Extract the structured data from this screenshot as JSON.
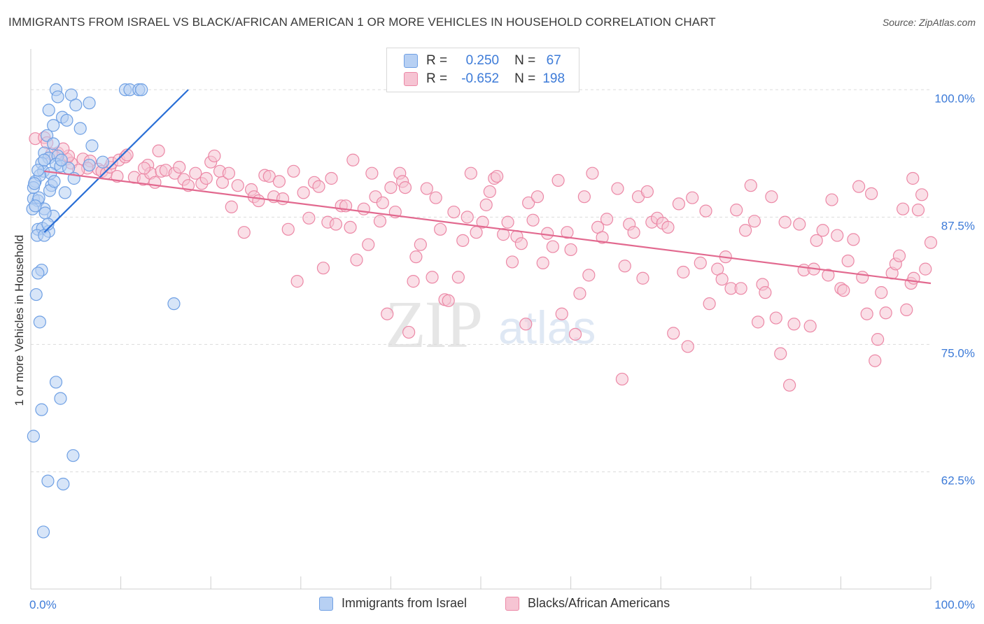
{
  "chart_data": {
    "type": "scatter",
    "title": "IMMIGRANTS FROM ISRAEL VS BLACK/AFRICAN AMERICAN 1 OR MORE VEHICLES IN HOUSEHOLD CORRELATION CHART",
    "source": "Source: ZipAtlas.com",
    "xlabel": "",
    "ylabel": "1 or more Vehicles in Household",
    "xlim": [
      0,
      100
    ],
    "ylim": [
      51,
      104
    ],
    "x_tick_labels": [
      "0.0%",
      "100.0%"
    ],
    "y_ticks": [
      62.5,
      75.0,
      87.5,
      100.0
    ],
    "y_tick_labels": [
      "62.5%",
      "75.0%",
      "87.5%",
      "100.0%"
    ],
    "grid": true,
    "legend_position": "top-center",
    "series": [
      {
        "name": "Immigrants from Israel",
        "color": "#6fa0e4",
        "fill": "#b7d0f3",
        "R": "0.250",
        "N": "67",
        "trend": {
          "x0": 1.5,
          "y0": 86.0,
          "x1": 17.5,
          "y1": 100.0
        },
        "points": [
          [
            2.8,
            100
          ],
          [
            3.0,
            99.3
          ],
          [
            4.5,
            99.5
          ],
          [
            5.0,
            98.5
          ],
          [
            6.5,
            98.7
          ],
          [
            2.0,
            98.0
          ],
          [
            3.5,
            97.3
          ],
          [
            2.5,
            96.5
          ],
          [
            4.0,
            97.0
          ],
          [
            5.5,
            96.2
          ],
          [
            1.8,
            95.5
          ],
          [
            2.5,
            94.7
          ],
          [
            6.8,
            94.5
          ],
          [
            1.5,
            93.8
          ],
          [
            2.0,
            93.3
          ],
          [
            3.0,
            93.5
          ],
          [
            1.2,
            92.8
          ],
          [
            2.8,
            92.7
          ],
          [
            3.3,
            92.5
          ],
          [
            4.2,
            92.3
          ],
          [
            1.4,
            92.0
          ],
          [
            2.2,
            91.8
          ],
          [
            4.8,
            91.3
          ],
          [
            0.5,
            91.0
          ],
          [
            2.3,
            90.6
          ],
          [
            3.8,
            89.9
          ],
          [
            0.3,
            89.3
          ],
          [
            0.8,
            89.1
          ],
          [
            0.2,
            88.3
          ],
          [
            1.5,
            88.3
          ],
          [
            2.5,
            87.6
          ],
          [
            0.8,
            86.3
          ],
          [
            1.3,
            86.4
          ],
          [
            2.0,
            86.1
          ],
          [
            0.7,
            85.7
          ],
          [
            1.5,
            85.7
          ],
          [
            1.2,
            82.3
          ],
          [
            0.8,
            82.0
          ],
          [
            0.6,
            79.9
          ],
          [
            1.0,
            77.2
          ],
          [
            2.8,
            71.3
          ],
          [
            3.3,
            69.7
          ],
          [
            1.2,
            68.6
          ],
          [
            0.3,
            66.0
          ],
          [
            4.7,
            64.1
          ],
          [
            1.9,
            61.6
          ],
          [
            3.6,
            61.3
          ],
          [
            1.4,
            56.6
          ],
          [
            10.5,
            100
          ],
          [
            11.0,
            100
          ],
          [
            12.0,
            100
          ],
          [
            12.3,
            100
          ],
          [
            8.0,
            92.9
          ],
          [
            6.5,
            92.6
          ],
          [
            1.5,
            93.1
          ],
          [
            0.3,
            90.4
          ],
          [
            0.9,
            89.4
          ],
          [
            1.6,
            87.9
          ],
          [
            0.5,
            88.6
          ],
          [
            15.9,
            79.0
          ],
          [
            2.1,
            90.1
          ],
          [
            1.9,
            86.8
          ],
          [
            3.4,
            93.1
          ],
          [
            2.6,
            91.0
          ],
          [
            1.0,
            91.6
          ],
          [
            0.4,
            90.8
          ],
          [
            0.8,
            92.1
          ]
        ]
      },
      {
        "name": "Blacks/African Americans",
        "color": "#ec88a6",
        "fill": "#f6c4d3",
        "R": "-0.652",
        "N": "198",
        "trend": {
          "x0": 1.5,
          "y0": 92.0,
          "x1": 100,
          "y1": 81.0
        },
        "points": [
          [
            0.5,
            95.2
          ],
          [
            1.5,
            95.3
          ],
          [
            3.0,
            93.8
          ],
          [
            4.0,
            93.2
          ],
          [
            4.5,
            92.8
          ],
          [
            5.8,
            93.2
          ],
          [
            6.6,
            93.0
          ],
          [
            6.3,
            92.3
          ],
          [
            7.5,
            92.2
          ],
          [
            7.9,
            92.0
          ],
          [
            8.4,
            91.8
          ],
          [
            8.8,
            92.4
          ],
          [
            9.0,
            92.8
          ],
          [
            9.8,
            93.1
          ],
          [
            10.5,
            93.4
          ],
          [
            10.7,
            93.6
          ],
          [
            11.5,
            91.4
          ],
          [
            12.5,
            91.2
          ],
          [
            13.0,
            92.6
          ],
          [
            13.3,
            91.8
          ],
          [
            13.8,
            90.9
          ],
          [
            14.5,
            92.0
          ],
          [
            15.0,
            92.1
          ],
          [
            16.0,
            91.8
          ],
          [
            16.5,
            92.4
          ],
          [
            17.0,
            91.2
          ],
          [
            17.5,
            90.6
          ],
          [
            18.3,
            91.8
          ],
          [
            19.0,
            90.8
          ],
          [
            19.5,
            91.3
          ],
          [
            20.0,
            92.9
          ],
          [
            20.4,
            93.5
          ],
          [
            21.0,
            92.0
          ],
          [
            21.3,
            90.9
          ],
          [
            22.0,
            91.8
          ],
          [
            22.3,
            88.5
          ],
          [
            23.0,
            90.6
          ],
          [
            23.7,
            86.0
          ],
          [
            24.5,
            90.2
          ],
          [
            24.8,
            89.5
          ],
          [
            25.3,
            89.1
          ],
          [
            26.0,
            91.6
          ],
          [
            26.5,
            91.5
          ],
          [
            27.0,
            89.5
          ],
          [
            27.6,
            91.0
          ],
          [
            28.0,
            89.3
          ],
          [
            28.6,
            86.3
          ],
          [
            29.2,
            92.0
          ],
          [
            29.6,
            81.2
          ],
          [
            30.3,
            89.9
          ],
          [
            30.9,
            87.4
          ],
          [
            31.5,
            90.9
          ],
          [
            32.0,
            90.5
          ],
          [
            32.5,
            82.5
          ],
          [
            33.0,
            87.0
          ],
          [
            33.4,
            91.3
          ],
          [
            33.9,
            86.8
          ],
          [
            34.5,
            88.6
          ],
          [
            35.0,
            88.6
          ],
          [
            35.5,
            86.5
          ],
          [
            35.8,
            93.1
          ],
          [
            36.2,
            83.3
          ],
          [
            37.0,
            88.3
          ],
          [
            37.5,
            84.8
          ],
          [
            37.9,
            91.8
          ],
          [
            38.3,
            89.5
          ],
          [
            38.8,
            87.1
          ],
          [
            39.1,
            88.9
          ],
          [
            39.6,
            78.0
          ],
          [
            40.0,
            90.4
          ],
          [
            40.5,
            88.0
          ],
          [
            41.0,
            91.8
          ],
          [
            41.3,
            91.0
          ],
          [
            41.6,
            90.4
          ],
          [
            42.0,
            76.2
          ],
          [
            42.5,
            81.2
          ],
          [
            42.8,
            83.6
          ],
          [
            43.3,
            84.8
          ],
          [
            44.0,
            90.3
          ],
          [
            44.6,
            81.6
          ],
          [
            45.0,
            89.4
          ],
          [
            45.5,
            86.3
          ],
          [
            46.0,
            79.4
          ],
          [
            46.4,
            79.3
          ],
          [
            47.0,
            88.0
          ],
          [
            47.5,
            81.6
          ],
          [
            48.0,
            85.2
          ],
          [
            48.5,
            87.5
          ],
          [
            48.9,
            91.8
          ],
          [
            49.5,
            86.0
          ],
          [
            50.2,
            87.0
          ],
          [
            50.6,
            88.7
          ],
          [
            51.0,
            90.0
          ],
          [
            51.5,
            91.3
          ],
          [
            51.8,
            91.5
          ],
          [
            52.5,
            85.8
          ],
          [
            53.0,
            87.0
          ],
          [
            53.5,
            83.1
          ],
          [
            54.0,
            85.6
          ],
          [
            54.5,
            84.9
          ],
          [
            55.0,
            77.0
          ],
          [
            55.3,
            88.9
          ],
          [
            55.8,
            87.2
          ],
          [
            56.3,
            89.5
          ],
          [
            56.9,
            83.0
          ],
          [
            57.4,
            85.9
          ],
          [
            58.0,
            84.6
          ],
          [
            58.6,
            91.1
          ],
          [
            59.0,
            78.0
          ],
          [
            59.6,
            86.0
          ],
          [
            60.0,
            84.3
          ],
          [
            60.5,
            76.0
          ],
          [
            61.0,
            80.0
          ],
          [
            61.5,
            89.5
          ],
          [
            62.0,
            81.8
          ],
          [
            62.4,
            91.8
          ],
          [
            63.0,
            86.5
          ],
          [
            63.5,
            85.5
          ],
          [
            64.0,
            87.3
          ],
          [
            65.2,
            90.3
          ],
          [
            65.7,
            71.6
          ],
          [
            66.0,
            82.7
          ],
          [
            66.5,
            86.8
          ],
          [
            67.0,
            86.0
          ],
          [
            67.5,
            89.5
          ],
          [
            68.0,
            81.5
          ],
          [
            68.5,
            90.0
          ],
          [
            69.0,
            87.0
          ],
          [
            69.6,
            87.4
          ],
          [
            70.2,
            86.9
          ],
          [
            70.8,
            86.5
          ],
          [
            71.4,
            76.1
          ],
          [
            72.0,
            88.8
          ],
          [
            72.5,
            82.1
          ],
          [
            73.0,
            74.8
          ],
          [
            73.5,
            89.4
          ],
          [
            74.4,
            83.0
          ],
          [
            75.0,
            88.1
          ],
          [
            75.4,
            79.0
          ],
          [
            76.3,
            82.4
          ],
          [
            76.8,
            81.4
          ],
          [
            77.2,
            83.6
          ],
          [
            77.8,
            80.5
          ],
          [
            78.4,
            88.2
          ],
          [
            78.9,
            80.5
          ],
          [
            79.4,
            86.2
          ],
          [
            80.0,
            90.6
          ],
          [
            80.4,
            87.1
          ],
          [
            80.8,
            77.2
          ],
          [
            81.3,
            80.9
          ],
          [
            81.6,
            80.1
          ],
          [
            82.3,
            89.5
          ],
          [
            82.8,
            77.6
          ],
          [
            83.3,
            74.1
          ],
          [
            83.8,
            87.0
          ],
          [
            84.3,
            71.0
          ],
          [
            84.8,
            77.0
          ],
          [
            85.4,
            86.8
          ],
          [
            85.9,
            82.3
          ],
          [
            86.6,
            76.8
          ],
          [
            87.0,
            82.4
          ],
          [
            87.3,
            85.2
          ],
          [
            88.0,
            86.2
          ],
          [
            88.6,
            81.8
          ],
          [
            89.0,
            89.2
          ],
          [
            89.6,
            85.7
          ],
          [
            90.0,
            80.5
          ],
          [
            90.3,
            80.3
          ],
          [
            90.8,
            83.2
          ],
          [
            91.4,
            85.3
          ],
          [
            92.0,
            90.5
          ],
          [
            92.4,
            81.6
          ],
          [
            92.9,
            78.0
          ],
          [
            93.4,
            89.8
          ],
          [
            94.1,
            75.5
          ],
          [
            94.5,
            80.1
          ],
          [
            95.0,
            78.1
          ],
          [
            95.7,
            82.0
          ],
          [
            96.1,
            82.9
          ],
          [
            96.5,
            83.7
          ],
          [
            96.9,
            88.3
          ],
          [
            97.3,
            78.4
          ],
          [
            97.8,
            81.0
          ],
          [
            98.0,
            91.3
          ],
          [
            98.6,
            88.2
          ],
          [
            99.0,
            89.7
          ],
          [
            99.4,
            82.4
          ],
          [
            100.0,
            85.0
          ],
          [
            93.8,
            73.4
          ],
          [
            98.1,
            81.5
          ],
          [
            1.8,
            94.8
          ],
          [
            2.3,
            93.7
          ],
          [
            4.2,
            93.5
          ],
          [
            14.2,
            94.0
          ],
          [
            12.6,
            92.3
          ],
          [
            9.6,
            91.5
          ],
          [
            3.6,
            94.2
          ],
          [
            5.3,
            92.1
          ]
        ]
      }
    ]
  },
  "legend": {
    "r_label": "R =",
    "n_label": "N =",
    "rows": [
      {
        "r": "0.250",
        "n": "67"
      },
      {
        "r": "-0.652",
        "n": "198"
      }
    ]
  },
  "bottom_legend": [
    "Immigrants from Israel",
    "Blacks/African Americans"
  ],
  "watermark": {
    "zip": "ZIP",
    "atlas": "atlas"
  }
}
